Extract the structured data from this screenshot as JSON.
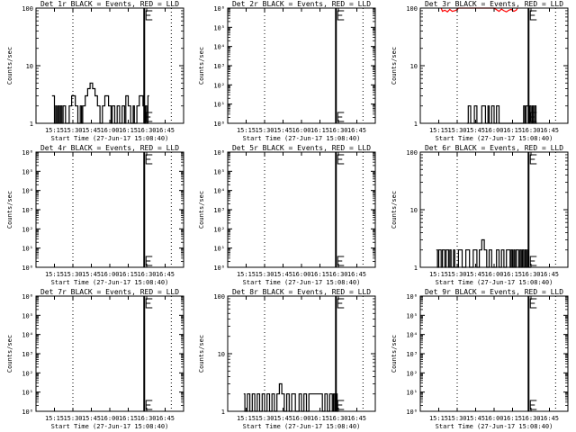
{
  "figure": {
    "background": "#ffffff",
    "events_color": "#000000",
    "lld_color": "#ff0000"
  },
  "time_axis": {
    "label": "Start Time (27-Jun-17 15:08:40)",
    "ticks": [
      "15:15",
      "15:30",
      "15:45",
      "16:00",
      "16:15",
      "16:30",
      "16:45"
    ],
    "tick_minutes": [
      15,
      30,
      45,
      60,
      75,
      90,
      105
    ],
    "range_minutes": [
      0,
      120
    ],
    "dotted_lines_minutes": [
      30,
      110
    ],
    "solid_line_minutes": [
      88
    ]
  },
  "y_label": "Counts/sec",
  "chart_data": [
    {
      "type": "line",
      "title": "Det 1r BLACK = Events, RED = LLD",
      "y_scale": "log",
      "ylim": [
        1,
        100
      ],
      "ytick_values": [
        1,
        10,
        100
      ],
      "ytick_labels": [
        "1",
        "10",
        "100"
      ],
      "series": [
        {
          "name": "Events",
          "color": "#000000",
          "x": [
            13,
            15,
            15,
            16,
            16,
            17,
            17,
            18,
            18,
            19,
            19,
            20,
            20,
            21,
            21,
            22,
            22,
            24,
            24,
            27,
            27,
            29,
            29,
            32,
            32,
            34,
            34,
            36,
            36,
            37,
            37,
            38,
            38,
            40,
            40,
            42,
            42,
            44,
            44,
            46,
            46,
            48,
            48,
            50,
            50,
            52,
            52,
            54,
            54,
            56,
            56,
            59,
            59,
            61,
            61,
            62,
            62,
            64,
            64,
            66,
            66,
            68,
            68,
            70,
            70,
            72,
            72,
            73,
            73,
            75,
            75,
            77,
            77,
            79,
            79,
            80,
            80,
            82,
            82,
            84,
            84,
            87,
            87,
            88,
            88,
            89,
            89,
            90,
            90,
            91,
            91,
            92
          ],
          "y": [
            3,
            3,
            1,
            1,
            2,
            2,
            1,
            1,
            2,
            2,
            1,
            1,
            2,
            2,
            1,
            1,
            2,
            2,
            1,
            1,
            2,
            2,
            3,
            3,
            2,
            2,
            1,
            1,
            2,
            2,
            1,
            1,
            2,
            2,
            3,
            3,
            4,
            4,
            5,
            5,
            4,
            4,
            3,
            3,
            2,
            2,
            1,
            1,
            2,
            2,
            3,
            3,
            2,
            2,
            1,
            1,
            2,
            2,
            1,
            1,
            2,
            2,
            1,
            1,
            2,
            2,
            1,
            1,
            3,
            3,
            2,
            2,
            1,
            1,
            2,
            2,
            1,
            1,
            2,
            2,
            3,
            3,
            2,
            2,
            1,
            1,
            2,
            2,
            1,
            1,
            3,
            3
          ]
        }
      ]
    },
    {
      "type": "line",
      "title": "Det 2r BLACK = Events, RED = LLD",
      "y_scale": "log",
      "ylim": [
        1,
        1000000
      ],
      "ytick_values": [
        1,
        10,
        100,
        1000,
        10000,
        100000,
        1000000
      ],
      "ytick_labels": [
        "10⁰",
        "10¹",
        "10²",
        "10³",
        "10⁴",
        "10⁵",
        "10⁶"
      ],
      "series": []
    },
    {
      "type": "line",
      "title": "Det 3r BLACK = Events, RED = LLD",
      "y_scale": "log",
      "ylim": [
        1,
        100
      ],
      "ytick_values": [
        1,
        10,
        100
      ],
      "ytick_labels": [
        "1",
        "10",
        "100"
      ],
      "series": [
        {
          "name": "Events",
          "color": "#000000",
          "x": [
            38,
            39,
            39,
            41,
            41,
            44,
            44,
            46,
            46,
            50,
            50,
            53,
            53,
            55,
            55,
            56,
            56,
            58,
            58,
            60,
            60,
            62,
            62,
            64,
            64,
            84,
            84,
            85,
            85,
            86,
            86,
            88,
            88,
            89,
            89,
            90,
            90,
            91,
            91,
            92,
            92,
            93,
            93,
            94,
            94,
            95
          ],
          "y": [
            1,
            1,
            2,
            2,
            1,
            1,
            2,
            2,
            1,
            1,
            2,
            2,
            1,
            1,
            2,
            2,
            1,
            1,
            2,
            2,
            1,
            1,
            2,
            2,
            1,
            1,
            2,
            2,
            1,
            1,
            2,
            2,
            1,
            1,
            2,
            2,
            1,
            1,
            2,
            2,
            1,
            1,
            2,
            2,
            1,
            1
          ]
        },
        {
          "name": "LLD",
          "color": "#ff0000",
          "x": [
            17,
            18,
            20,
            22,
            24,
            26,
            28,
            30,
            31,
            33,
            35,
            38,
            40,
            60,
            62,
            64,
            66,
            68,
            70,
            72,
            74,
            76,
            78,
            79
          ],
          "y": [
            100,
            88,
            92,
            86,
            95,
            88,
            90,
            94,
            100,
            100,
            100,
            100,
            100,
            100,
            94,
            88,
            96,
            90,
            86,
            92,
            95,
            88,
            92,
            100
          ]
        }
      ]
    },
    {
      "type": "line",
      "title": "Det 4r BLACK = Events, RED = LLD",
      "y_scale": "log",
      "ylim": [
        1,
        1000000
      ],
      "ytick_values": [
        1,
        10,
        100,
        1000,
        10000,
        100000,
        1000000
      ],
      "ytick_labels": [
        "10⁰",
        "10¹",
        "10²",
        "10³",
        "10⁴",
        "10⁵",
        "10⁶"
      ],
      "series": []
    },
    {
      "type": "line",
      "title": "Det 5r BLACK = Events, RED = LLD",
      "y_scale": "log",
      "ylim": [
        1,
        1000000
      ],
      "ytick_values": [
        1,
        10,
        100,
        1000,
        10000,
        100000,
        1000000
      ],
      "ytick_labels": [
        "10⁰",
        "10¹",
        "10²",
        "10³",
        "10⁴",
        "10⁵",
        "10⁶"
      ],
      "series": []
    },
    {
      "type": "line",
      "title": "Det 6r BLACK = Events, RED = LLD",
      "y_scale": "log",
      "ylim": [
        1,
        100
      ],
      "ytick_values": [
        1,
        10,
        100
      ],
      "ytick_labels": [
        "1",
        "10",
        "100"
      ],
      "series": [
        {
          "name": "Events",
          "color": "#000000",
          "x": [
            13,
            14,
            14,
            15,
            15,
            17,
            17,
            18,
            18,
            20,
            20,
            21,
            21,
            23,
            23,
            24,
            24,
            25,
            25,
            27,
            27,
            28,
            28,
            31,
            31,
            34,
            34,
            37,
            37,
            40,
            40,
            43,
            43,
            46,
            46,
            48,
            48,
            50,
            50,
            52,
            52,
            54,
            54,
            56,
            56,
            58,
            58,
            62,
            62,
            64,
            64,
            66,
            66,
            68,
            68,
            70,
            70,
            73,
            73,
            74,
            74,
            75,
            75,
            76,
            76,
            77,
            77,
            78,
            78,
            80,
            80,
            81,
            81,
            82,
            82,
            83,
            83,
            84,
            84,
            85,
            85,
            86,
            86,
            87,
            87,
            88,
            88,
            90
          ],
          "y": [
            2,
            2,
            1,
            1,
            2,
            2,
            1,
            1,
            2,
            2,
            1,
            1,
            2,
            2,
            1,
            1,
            2,
            2,
            1,
            1,
            2,
            2,
            1,
            1,
            2,
            2,
            1,
            1,
            2,
            2,
            1,
            1,
            2,
            2,
            1,
            1,
            2,
            2,
            3,
            3,
            2,
            2,
            1,
            1,
            2,
            2,
            1,
            1,
            2,
            2,
            1,
            1,
            2,
            2,
            1,
            1,
            2,
            2,
            1,
            1,
            2,
            2,
            1,
            1,
            2,
            2,
            1,
            1,
            2,
            2,
            1,
            1,
            2,
            2,
            1,
            1,
            2,
            2,
            1,
            1,
            2,
            2,
            1,
            1,
            2,
            2,
            1,
            1
          ]
        }
      ]
    },
    {
      "type": "line",
      "title": "Det 7r BLACK = Events, RED = LLD",
      "y_scale": "log",
      "ylim": [
        1,
        1000000
      ],
      "ytick_values": [
        1,
        10,
        100,
        1000,
        10000,
        100000,
        1000000
      ],
      "ytick_labels": [
        "10⁰",
        "10¹",
        "10²",
        "10³",
        "10⁴",
        "10⁵",
        "10⁶"
      ],
      "series": []
    },
    {
      "type": "line",
      "title": "Det 8r BLACK = Events, RED = LLD",
      "y_scale": "log",
      "ylim": [
        1,
        100
      ],
      "ytick_values": [
        1,
        10,
        100
      ],
      "ytick_labels": [
        "1",
        "10",
        "100"
      ],
      "series": [
        {
          "name": "Events",
          "color": "#000000",
          "x": [
            13,
            14,
            14,
            16,
            16,
            18,
            18,
            20,
            20,
            22,
            22,
            24,
            24,
            26,
            26,
            28,
            28,
            30,
            30,
            32,
            32,
            34,
            34,
            36,
            36,
            38,
            38,
            40,
            40,
            42,
            42,
            44,
            44,
            46,
            46,
            48,
            48,
            50,
            50,
            52,
            52,
            55,
            55,
            58,
            58,
            60,
            60,
            62,
            62,
            64,
            64,
            66,
            66,
            77,
            77,
            79,
            79,
            81,
            81,
            83,
            83,
            85,
            85,
            86,
            86,
            87,
            87,
            88,
            88,
            89,
            89,
            90
          ],
          "y": [
            2,
            2,
            1,
            1,
            2,
            2,
            1,
            1,
            2,
            2,
            1,
            1,
            2,
            2,
            1,
            1,
            2,
            2,
            1,
            1,
            2,
            2,
            1,
            1,
            2,
            2,
            1,
            1,
            2,
            2,
            3,
            3,
            2,
            2,
            1,
            1,
            2,
            2,
            1,
            1,
            2,
            2,
            1,
            1,
            2,
            2,
            1,
            1,
            2,
            2,
            1,
            1,
            2,
            2,
            1,
            1,
            2,
            2,
            1,
            1,
            2,
            2,
            1,
            1,
            2,
            2,
            1,
            1,
            2,
            2,
            1,
            1
          ]
        }
      ]
    },
    {
      "type": "line",
      "title": "Det 9r BLACK = Events, RED = LLD",
      "y_scale": "log",
      "ylim": [
        1,
        1000000
      ],
      "ytick_values": [
        1,
        10,
        100,
        1000,
        10000,
        100000,
        1000000
      ],
      "ytick_labels": [
        "10⁰",
        "10¹",
        "10²",
        "10³",
        "10⁴",
        "10⁵",
        "10⁶"
      ],
      "series": []
    }
  ]
}
